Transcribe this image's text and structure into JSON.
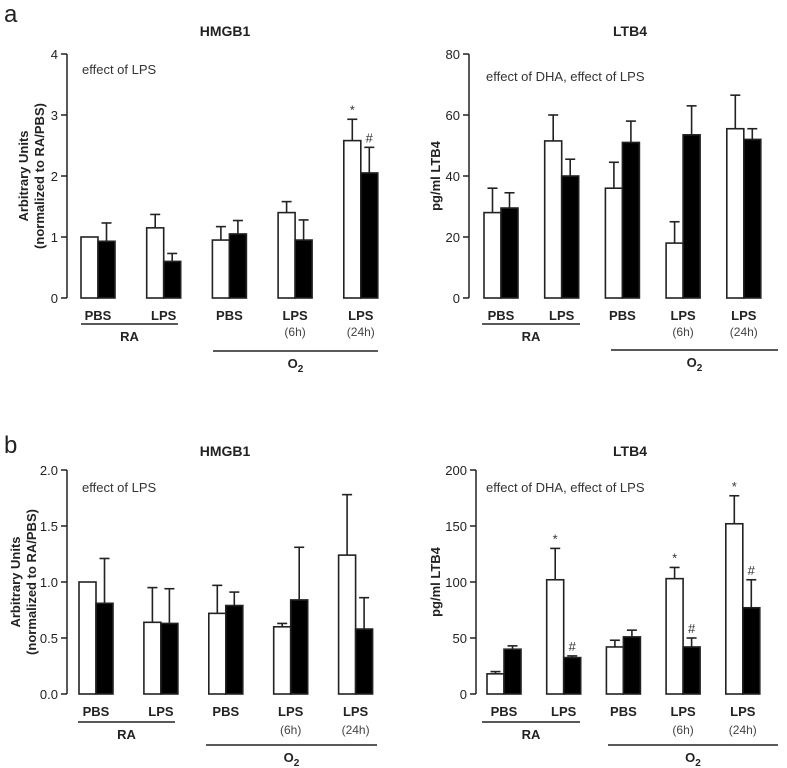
{
  "panels": {
    "a": "a",
    "b": "b"
  },
  "colors": {
    "axis": "#222222",
    "white_bar": "#ffffff",
    "black_bar": "#000000"
  },
  "chart_data": [
    {
      "id": "a-hmgb1",
      "type": "bar",
      "title": "HMGB1",
      "ylabel": [
        "Arbitrary Units",
        "(normalized to RA/PBS)"
      ],
      "annotation": "effect of LPS",
      "ylim": [
        0,
        4
      ],
      "yticks": [
        "0",
        "1",
        "2",
        "3",
        "4"
      ],
      "categories": [
        "PBS",
        "LPS",
        "PBS",
        "LPS",
        "LPS"
      ],
      "subcategories": [
        "",
        "",
        "",
        "(6h)",
        "(24h)"
      ],
      "series": [
        {
          "name": "open",
          "values": [
            1.0,
            1.15,
            0.95,
            1.4,
            2.58
          ],
          "errors": [
            0.0,
            0.22,
            0.22,
            0.18,
            0.35
          ]
        },
        {
          "name": "filled",
          "values": [
            0.93,
            0.6,
            1.05,
            0.95,
            2.05
          ],
          "errors": [
            0.3,
            0.13,
            0.22,
            0.33,
            0.42
          ]
        }
      ],
      "significance": [
        {
          "category": 4,
          "series": 0,
          "mark": "*"
        },
        {
          "category": 4,
          "series": 1,
          "mark": "#"
        }
      ],
      "groups": [
        {
          "label": "RA",
          "from": 0,
          "to": 1
        },
        {
          "label": "O2",
          "from": 2,
          "to": 4
        }
      ]
    },
    {
      "id": "a-ltb4",
      "type": "bar",
      "title": "LTB4",
      "ylabel": [
        "pg/ml LTB4"
      ],
      "annotation": "effect of DHA, effect of LPS",
      "ylim": [
        0,
        80
      ],
      "yticks": [
        "0",
        "20",
        "40",
        "60",
        "80"
      ],
      "categories": [
        "PBS",
        "LPS",
        "PBS",
        "LPS",
        "LPS"
      ],
      "subcategories": [
        "",
        "",
        "",
        "(6h)",
        "(24h)"
      ],
      "series": [
        {
          "name": "open",
          "values": [
            28,
            51.5,
            36,
            18,
            55.5
          ],
          "errors": [
            8,
            8.5,
            8.5,
            7,
            11
          ]
        },
        {
          "name": "filled",
          "values": [
            29.5,
            40,
            51,
            53.5,
            52
          ],
          "errors": [
            5,
            5.5,
            7,
            9.5,
            3.5
          ]
        }
      ],
      "significance": [],
      "groups": [
        {
          "label": "RA",
          "from": 0,
          "to": 1
        },
        {
          "label": "O2",
          "from": 2,
          "to": 4
        }
      ]
    },
    {
      "id": "b-hmgb1",
      "type": "bar",
      "title": "HMGB1",
      "ylabel": [
        "Arbitrary Units",
        "(normalized to RA/PBS)"
      ],
      "annotation": "effect of LPS",
      "ylim": [
        0,
        2.0
      ],
      "yticks": [
        "0.0",
        "0.5",
        "1.0",
        "1.5",
        "2.0"
      ],
      "categories": [
        "PBS",
        "LPS",
        "PBS",
        "LPS",
        "LPS"
      ],
      "subcategories": [
        "",
        "",
        "",
        "(6h)",
        "(24h)"
      ],
      "series": [
        {
          "name": "open",
          "values": [
            1.0,
            0.64,
            0.72,
            0.6,
            1.24
          ],
          "errors": [
            0.0,
            0.31,
            0.25,
            0.03,
            0.54
          ]
        },
        {
          "name": "filled",
          "values": [
            0.81,
            0.63,
            0.79,
            0.84,
            0.58
          ],
          "errors": [
            0.4,
            0.31,
            0.12,
            0.47,
            0.28
          ]
        }
      ],
      "significance": [],
      "groups": [
        {
          "label": "RA",
          "from": 0,
          "to": 1
        },
        {
          "label": "O2",
          "from": 2,
          "to": 4
        }
      ]
    },
    {
      "id": "b-ltb4",
      "type": "bar",
      "title": "LTB4",
      "ylabel": [
        "pg/ml LTB4"
      ],
      "annotation": "effect of DHA, effect of LPS",
      "ylim": [
        0,
        200
      ],
      "yticks": [
        "0",
        "50",
        "100",
        "150",
        "200"
      ],
      "categories": [
        "PBS",
        "LPS",
        "PBS",
        "LPS",
        "LPS"
      ],
      "subcategories": [
        "",
        "",
        "",
        "(6h)",
        "(24h)"
      ],
      "series": [
        {
          "name": "open",
          "values": [
            18,
            102,
            42,
            103,
            152
          ],
          "errors": [
            2,
            28,
            6,
            10,
            25
          ]
        },
        {
          "name": "filled",
          "values": [
            40,
            32.5,
            51,
            42,
            77
          ],
          "errors": [
            3,
            1.5,
            6,
            8,
            25
          ]
        }
      ],
      "significance": [
        {
          "category": 1,
          "series": 0,
          "mark": "*"
        },
        {
          "category": 1,
          "series": 1,
          "mark": "#"
        },
        {
          "category": 3,
          "series": 0,
          "mark": "*"
        },
        {
          "category": 3,
          "series": 1,
          "mark": "#"
        },
        {
          "category": 4,
          "series": 0,
          "mark": "*"
        },
        {
          "category": 4,
          "series": 1,
          "mark": "#"
        }
      ],
      "groups": [
        {
          "label": "RA",
          "from": 0,
          "to": 1
        },
        {
          "label": "O2",
          "from": 2,
          "to": 4
        }
      ]
    }
  ]
}
